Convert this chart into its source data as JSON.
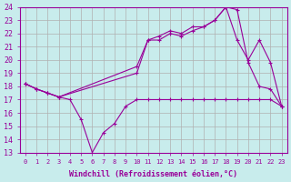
{
  "xlabel": "Windchill (Refroidissement éolien,°C)",
  "bg_color": "#c8ecec",
  "grid_color": "#b0b0b0",
  "line_color": "#990099",
  "xlim": [
    -0.5,
    23.5
  ],
  "ylim": [
    13,
    24
  ],
  "xticks": [
    0,
    1,
    2,
    3,
    4,
    5,
    6,
    7,
    8,
    9,
    10,
    11,
    12,
    13,
    14,
    15,
    16,
    17,
    18,
    19,
    20,
    21,
    22,
    23
  ],
  "yticks": [
    13,
    14,
    15,
    16,
    17,
    18,
    19,
    20,
    21,
    22,
    23,
    24
  ],
  "series1_x": [
    0,
    1,
    2,
    3,
    4,
    5,
    6,
    7,
    8,
    9,
    10,
    11,
    12,
    13,
    14,
    15,
    16,
    17,
    18,
    19,
    20,
    21,
    22,
    23
  ],
  "series1_y": [
    18.2,
    17.8,
    17.5,
    17.2,
    17.0,
    15.5,
    13.0,
    14.5,
    15.2,
    16.5,
    17.0,
    17.0,
    17.0,
    17.0,
    17.0,
    17.0,
    17.0,
    17.0,
    17.0,
    17.0,
    17.0,
    17.0,
    17.0,
    16.5
  ],
  "series2_x": [
    0,
    1,
    2,
    3,
    10,
    11,
    12,
    13,
    14,
    15,
    16,
    17,
    18,
    19,
    20,
    21,
    22,
    23
  ],
  "series2_y": [
    18.2,
    17.8,
    17.5,
    17.2,
    19.5,
    21.5,
    21.8,
    22.2,
    22.0,
    22.5,
    22.5,
    23.0,
    24.0,
    23.8,
    19.8,
    18.0,
    17.8,
    16.5
  ],
  "series3_x": [
    0,
    1,
    2,
    3,
    10,
    11,
    12,
    13,
    14,
    15,
    16,
    17,
    18,
    19,
    20,
    21,
    22,
    23
  ],
  "series3_y": [
    18.2,
    17.8,
    17.5,
    17.2,
    19.0,
    21.5,
    21.5,
    22.0,
    21.8,
    22.2,
    22.5,
    23.0,
    24.0,
    21.5,
    20.0,
    21.5,
    19.8,
    16.5
  ]
}
